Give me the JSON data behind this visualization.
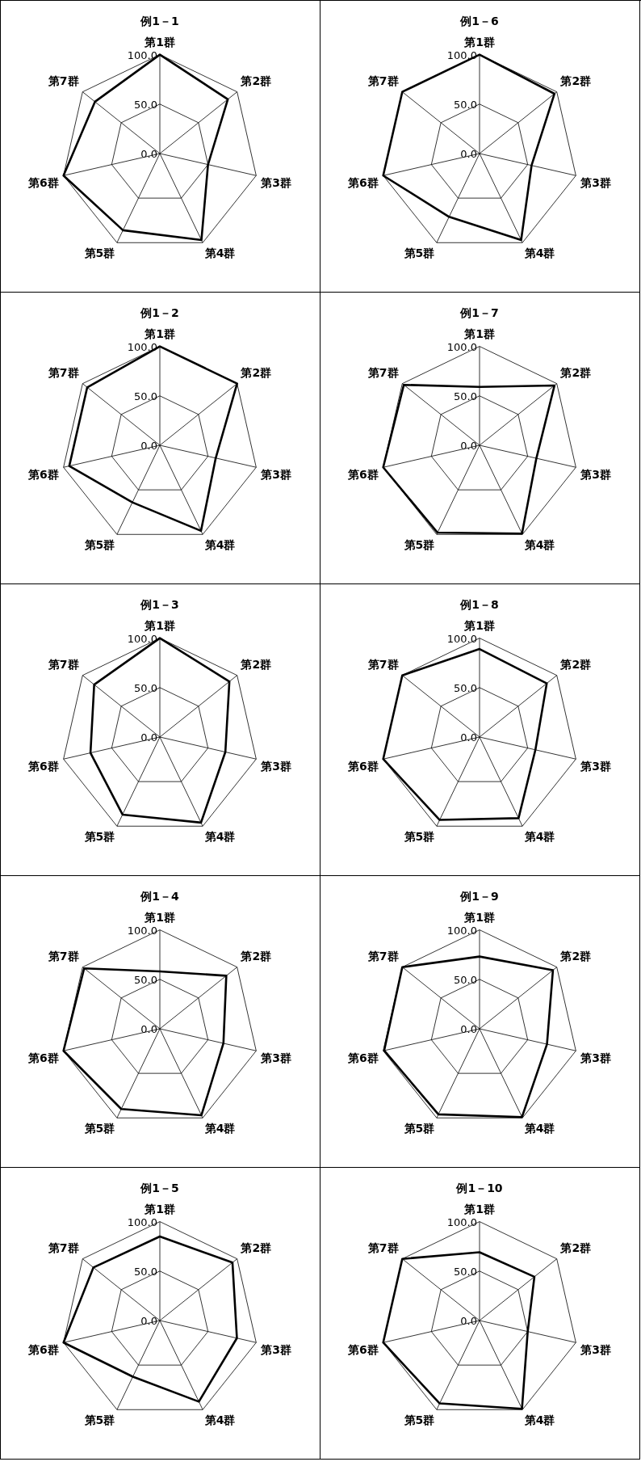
{
  "chart_data": [
    {
      "type": "radar",
      "title": "例1－1",
      "categories": [
        "第1群",
        "第2群",
        "第3群",
        "第4群",
        "第5群",
        "第6群",
        "第7群"
      ],
      "series": [
        {
          "color": "#000000",
          "values": [
            100,
            88,
            50,
            97,
            86,
            100,
            84
          ]
        }
      ],
      "ylim": [
        0,
        100
      ],
      "yticks": [
        {
          "value": 0,
          "label": "0.0"
        },
        {
          "value": 50,
          "label": "50.0"
        },
        {
          "value": 100,
          "label": "100.0"
        }
      ],
      "grid": true,
      "legend": false,
      "marker": "none"
    },
    {
      "type": "radar",
      "title": "例1－6",
      "categories": [
        "第1群",
        "第2群",
        "第3群",
        "第4群",
        "第5群",
        "第6群",
        "第7群"
      ],
      "series": [
        {
          "color": "#000000",
          "values": [
            100,
            97,
            54,
            97,
            71,
            100,
            100
          ]
        }
      ],
      "ylim": [
        0,
        100
      ],
      "yticks": [
        {
          "value": 0,
          "label": "0.0"
        },
        {
          "value": 50,
          "label": "50.0"
        },
        {
          "value": 100,
          "label": "100.0"
        }
      ],
      "grid": true,
      "legend": false,
      "marker": "none"
    },
    {
      "type": "radar",
      "title": "例1－2",
      "categories": [
        "第1群",
        "第2群",
        "第3群",
        "第4群",
        "第5群",
        "第6群",
        "第7群"
      ],
      "series": [
        {
          "color": "#000000",
          "values": [
            100,
            100,
            58,
            96,
            64,
            94,
            94
          ]
        }
      ],
      "ylim": [
        0,
        100
      ],
      "yticks": [
        {
          "value": 0,
          "label": "0.0"
        },
        {
          "value": 50,
          "label": "50.0"
        },
        {
          "value": 100,
          "label": "100.0"
        }
      ],
      "grid": true,
      "legend": false,
      "marker": "none"
    },
    {
      "type": "radar",
      "title": "例1－7",
      "categories": [
        "第1群",
        "第2群",
        "第3群",
        "第4群",
        "第5群",
        "第6群",
        "第7群"
      ],
      "series": [
        {
          "color": "#000000",
          "values": [
            59,
            97,
            59,
            99,
            98,
            100,
            98
          ]
        }
      ],
      "ylim": [
        0,
        100
      ],
      "yticks": [
        {
          "value": 0,
          "label": "0.0"
        },
        {
          "value": 50,
          "label": "50.0"
        },
        {
          "value": 100,
          "label": "100.0"
        }
      ],
      "grid": true,
      "legend": false,
      "marker": "none"
    },
    {
      "type": "radar",
      "title": "例1－3",
      "categories": [
        "第1群",
        "第2群",
        "第3群",
        "第4群",
        "第5群",
        "第6群",
        "第7群"
      ],
      "series": [
        {
          "color": "#000000",
          "values": [
            100,
            90,
            68,
            96,
            87,
            72,
            85
          ]
        }
      ],
      "ylim": [
        0,
        100
      ],
      "yticks": [
        {
          "value": 0,
          "label": "0.0"
        },
        {
          "value": 50,
          "label": "50.0"
        },
        {
          "value": 100,
          "label": "100.0"
        }
      ],
      "grid": true,
      "legend": false,
      "marker": "none"
    },
    {
      "type": "radar",
      "title": "例1－8",
      "categories": [
        "第1群",
        "第2群",
        "第3群",
        "第4群",
        "第5群",
        "第6群",
        "第7群"
      ],
      "series": [
        {
          "color": "#000000",
          "values": [
            89,
            87,
            58,
            91,
            93,
            100,
            100
          ]
        }
      ],
      "ylim": [
        0,
        100
      ],
      "yticks": [
        {
          "value": 0,
          "label": "0.0"
        },
        {
          "value": 50,
          "label": "50.0"
        },
        {
          "value": 100,
          "label": "100.0"
        }
      ],
      "grid": true,
      "legend": false,
      "marker": "none"
    },
    {
      "type": "radar",
      "title": "例1－4",
      "categories": [
        "第1群",
        "第2群",
        "第3群",
        "第4群",
        "第5群",
        "第6群",
        "第7群"
      ],
      "series": [
        {
          "color": "#000000",
          "values": [
            58,
            86,
            66,
            97,
            90,
            100,
            98
          ]
        }
      ],
      "ylim": [
        0,
        100
      ],
      "yticks": [
        {
          "value": 0,
          "label": "0.0"
        },
        {
          "value": 50,
          "label": "50.0"
        },
        {
          "value": 100,
          "label": "100.0"
        }
      ],
      "grid": true,
      "legend": false,
      "marker": "none"
    },
    {
      "type": "radar",
      "title": "例1－9",
      "categories": [
        "第1群",
        "第2群",
        "第3群",
        "第4群",
        "第5群",
        "第6群",
        "第7群"
      ],
      "series": [
        {
          "color": "#000000",
          "values": [
            73,
            95,
            70,
            99,
            96,
            99,
            100
          ]
        }
      ],
      "ylim": [
        0,
        100
      ],
      "yticks": [
        {
          "value": 0,
          "label": "0.0"
        },
        {
          "value": 50,
          "label": "50.0"
        },
        {
          "value": 100,
          "label": "100.0"
        }
      ],
      "grid": true,
      "legend": false,
      "marker": "none"
    },
    {
      "type": "radar",
      "title": "例1－5",
      "categories": [
        "第1群",
        "第2群",
        "第3群",
        "第4群",
        "第5群",
        "第6群",
        "第7群"
      ],
      "series": [
        {
          "color": "#000000",
          "values": [
            85,
            94,
            80,
            91,
            63,
            100,
            86
          ]
        }
      ],
      "ylim": [
        0,
        100
      ],
      "yticks": [
        {
          "value": 0,
          "label": "0.0"
        },
        {
          "value": 50,
          "label": "50.0"
        },
        {
          "value": 100,
          "label": "100.0"
        }
      ],
      "grid": true,
      "legend": false,
      "marker": "none"
    },
    {
      "type": "radar",
      "title": "例1－10",
      "categories": [
        "第1群",
        "第2群",
        "第3群",
        "第4群",
        "第5群",
        "第6群",
        "第7群"
      ],
      "series": [
        {
          "color": "#000000",
          "values": [
            69,
            71,
            50,
            99,
            93,
            100,
            100
          ]
        }
      ],
      "ylim": [
        0,
        100
      ],
      "yticks": [
        {
          "value": 0,
          "label": "0.0"
        },
        {
          "value": 50,
          "label": "50.0"
        },
        {
          "value": 100,
          "label": "100.0"
        }
      ],
      "grid": true,
      "legend": false,
      "marker": "none"
    }
  ]
}
